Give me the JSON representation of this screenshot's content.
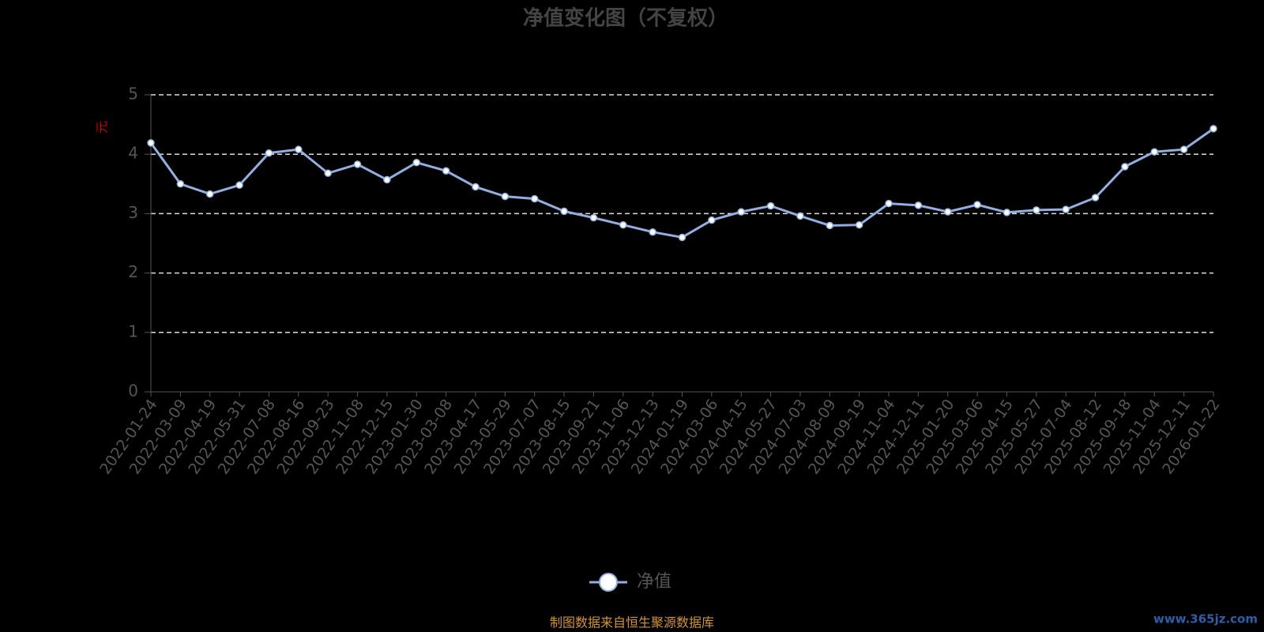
{
  "chart_data": {
    "type": "line",
    "title": "净值变化图（不复权）",
    "y_label": "元",
    "categories": [
      "2022-01-24",
      "2022-03-09",
      "2022-04-19",
      "2022-05-31",
      "2022-07-08",
      "2022-08-16",
      "2022-09-23",
      "2022-11-08",
      "2022-12-15",
      "2023-01-30",
      "2023-03-08",
      "2023-04-17",
      "2023-05-29",
      "2023-07-07",
      "2023-08-15",
      "2023-09-21",
      "2023-11-06",
      "2023-12-13",
      "2024-01-19",
      "2024-03-06",
      "2024-04-15",
      "2024-05-27",
      "2024-07-03",
      "2024-08-09",
      "2024-09-19",
      "2024-11-04",
      "2024-12-11",
      "2025-01-20",
      "2025-03-06",
      "2025-04-15",
      "2025-05-27",
      "2025-07-04",
      "2025-08-12",
      "2025-09-18",
      "2025-11-04",
      "2025-12-11",
      "2026-01-22"
    ],
    "series": [
      {
        "name": "净值",
        "color": "#8fb0e0",
        "values": [
          4.19,
          3.5,
          3.33,
          3.48,
          4.02,
          4.08,
          3.68,
          3.83,
          3.57,
          3.86,
          3.72,
          3.45,
          3.29,
          3.25,
          3.04,
          2.93,
          2.81,
          2.69,
          2.6,
          2.89,
          3.03,
          3.13,
          2.96,
          2.8,
          2.81,
          3.17,
          3.14,
          3.03,
          3.15,
          3.02,
          3.06,
          3.07,
          3.27,
          3.79,
          4.04,
          4.08,
          4.43
        ]
      }
    ],
    "ylim": [
      0,
      5
    ],
    "yticks": [
      0,
      1,
      2,
      3,
      4,
      5
    ],
    "grid": true,
    "source_note": "制图数据来自恒生聚源数据库",
    "watermark": "www.365jz.com"
  }
}
